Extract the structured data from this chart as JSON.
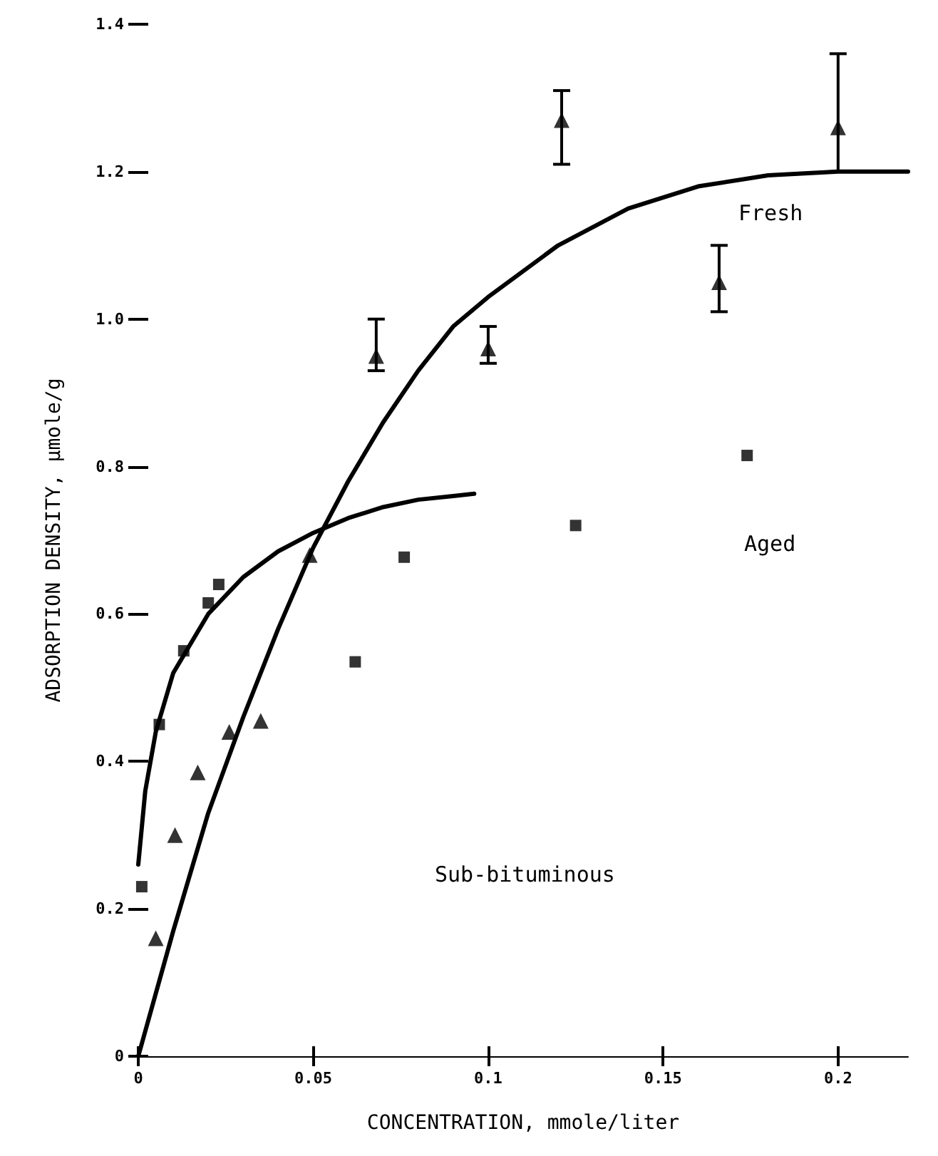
{
  "chart_data": {
    "type": "scatter",
    "xlabel": "CONCENTRATION, mmole/liter",
    "ylabel": "ADSORPTION DENSITY, µmole/g",
    "xlim": [
      0,
      0.22
    ],
    "xticks": [
      0,
      0.05,
      0.1,
      0.15,
      0.2
    ],
    "ylim": [
      0,
      1.4
    ],
    "yticks": [
      0,
      0.2,
      0.4,
      0.6,
      0.8,
      {
        "value": 1,
        "label": "1.0"
      },
      1.2,
      1.4
    ],
    "grid": false,
    "annotations": [
      "Fresh",
      "Aged",
      "Sub-bituminous"
    ],
    "series": [
      {
        "type": "line",
        "marker": "none",
        "line_style": "solid",
        "color": "#000000",
        "x": [
          0,
          0.01,
          0.02,
          0.03,
          0.04,
          0.05,
          0.06,
          0.07,
          0.08,
          0.09,
          0.1,
          0.12,
          0.14,
          0.16,
          0.18,
          0.2,
          0.22
        ],
        "values": [
          0,
          0.17,
          0.33,
          0.46,
          0.58,
          0.69,
          0.78,
          0.86,
          0.93,
          0.99,
          1.03,
          1.1,
          1.15,
          1.18,
          1.195,
          1.2,
          1.2
        ]
      },
      {
        "type": "line",
        "marker": "none",
        "line_style": "solid",
        "color": "#000000",
        "x": [
          0,
          0.002,
          0.005,
          0.01,
          0.02,
          0.03,
          0.04,
          0.05,
          0.06,
          0.07,
          0.08,
          0.09,
          0.096
        ],
        "values": [
          0.26,
          0.36,
          0.44,
          0.52,
          0.6,
          0.65,
          0.685,
          0.71,
          0.73,
          0.745,
          0.755,
          0.76,
          0.763
        ]
      },
      {
        "marker": "triangle",
        "color": "#000000",
        "x": [
          0.068,
          0.1,
          0.121,
          0.166,
          0.2
        ],
        "values": [
          0.95,
          0.96,
          1.27,
          1.05,
          1.26
        ],
        "errors": [
          [
            0.93,
            1.0
          ],
          [
            0.94,
            0.99
          ],
          [
            1.21,
            1.31
          ],
          [
            1.01,
            1.1
          ],
          [
            1.2,
            1.36
          ]
        ]
      },
      {
        "marker": "triangle",
        "color": "#000000",
        "x": [
          0.005,
          0.0105,
          0.017,
          0.026,
          0.035,
          0.049
        ],
        "values": [
          0.16,
          0.3,
          0.385,
          0.44,
          0.455,
          0.68
        ]
      },
      {
        "marker": "square",
        "color": "#000000",
        "x": [
          0.001,
          0.006,
          0.013,
          0.02,
          0.023,
          0.062,
          0.076,
          0.125,
          0.174
        ],
        "values": [
          0.23,
          0.45,
          0.55,
          0.615,
          0.64,
          0.535,
          0.677,
          0.72,
          0.815
        ]
      }
    ]
  }
}
